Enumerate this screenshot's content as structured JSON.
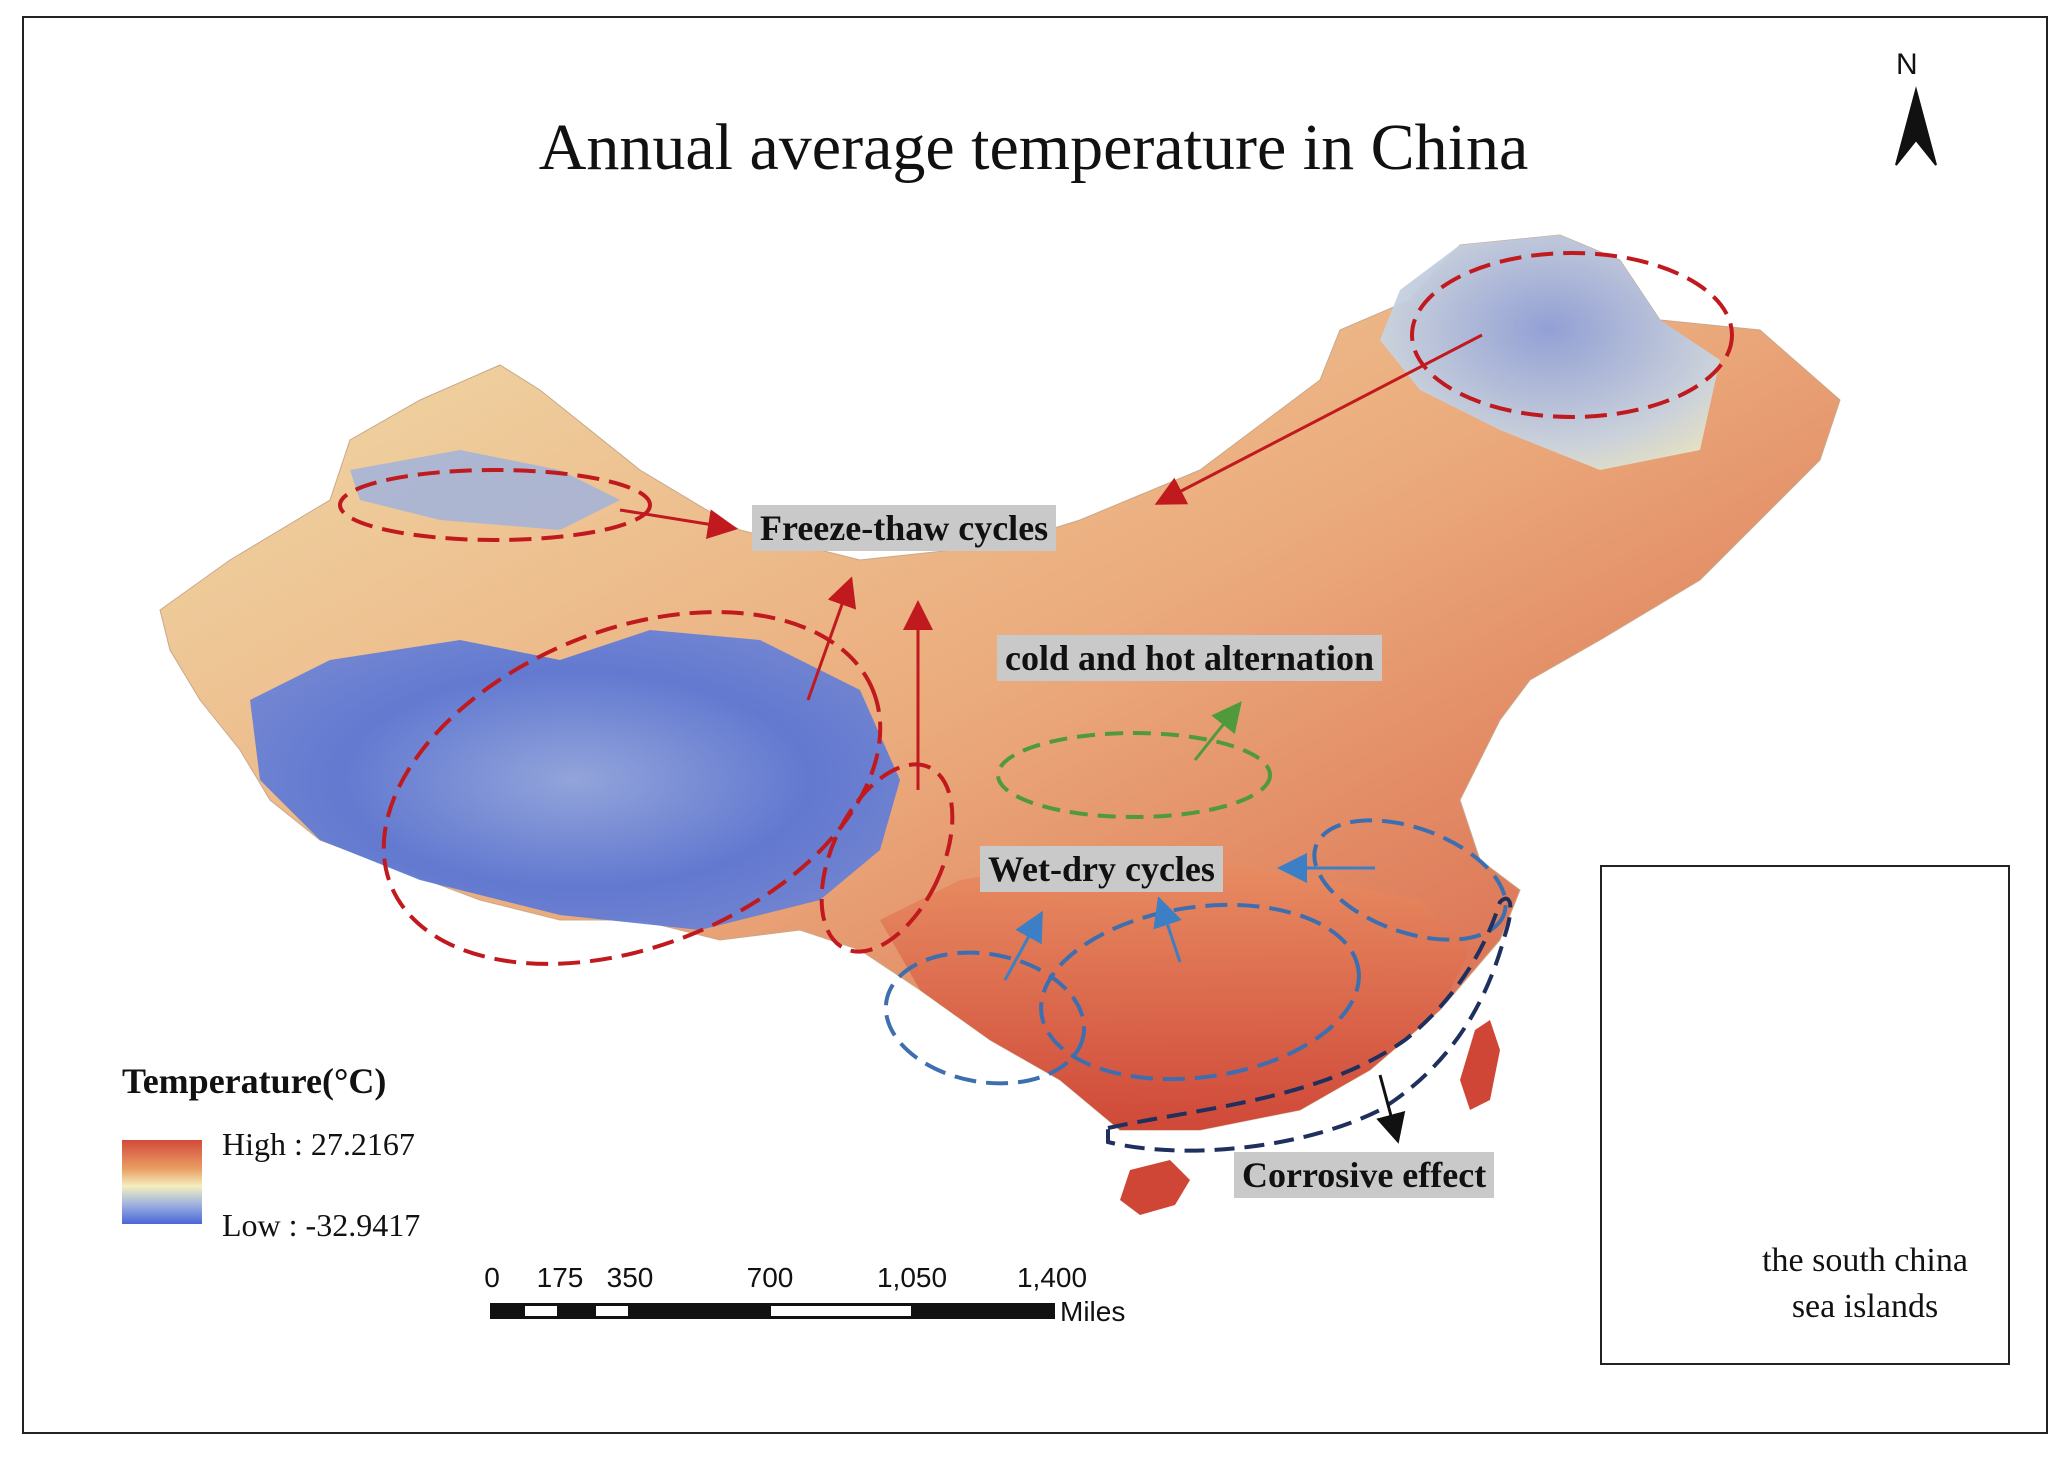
{
  "map": {
    "title": "Annual average temperature in China",
    "north_arrow_label": "N",
    "callouts": {
      "freeze_thaw": "Freeze-thaw cycles",
      "cold_hot": "cold and hot alternation",
      "wet_dry": "Wet-dry cycles",
      "corrosive": "Corrosive effect"
    },
    "legend": {
      "title": "Temperature(°C)",
      "high_label": "High : 27.2167",
      "low_label": "Low : -32.9417",
      "high_color": "#d44a3a",
      "low_color": "#4a66d6"
    },
    "scale_bar": {
      "ticks": [
        "0",
        "175",
        "350",
        "700",
        "1,050",
        "1,400"
      ],
      "unit": "Miles"
    },
    "inset": {
      "label_line1": "the south china",
      "label_line2": "sea islands"
    },
    "colors": {
      "freeze_thaw_ellipse": "#c0191e",
      "cold_hot_ellipse": "#4f9a3a",
      "wet_dry_ellipse": "#3d6fb0",
      "corrosive_ellipse": "#1f2f5e",
      "callout_bg": "#c9c9c9"
    }
  }
}
